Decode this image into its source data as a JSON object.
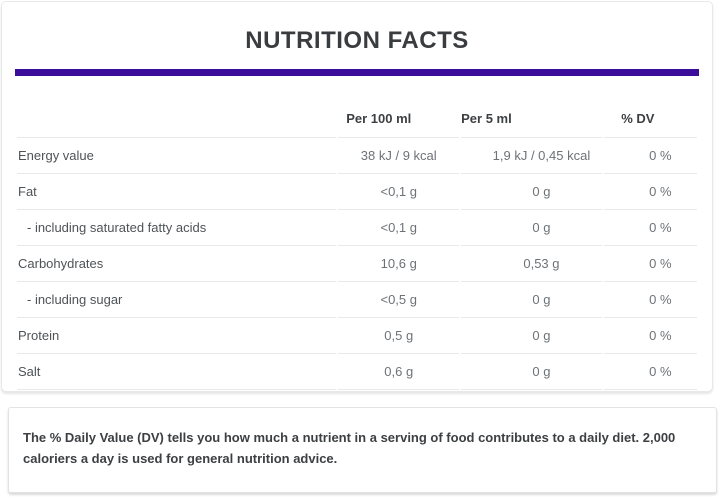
{
  "title": "NUTRITION FACTS",
  "theme": {
    "accent_bar_color": "#3a0d9b",
    "title_text_color": "#3a3d40",
    "separator_color": "#e9e9e9"
  },
  "table": {
    "columns": [
      "",
      "Per 100 ml",
      "Per 5 ml",
      "% DV"
    ],
    "rows": [
      {
        "name": "Energy value",
        "per_100ml": "38 kJ / 9 kcal",
        "per_5ml": "1,9 kJ / 0,45 kcal",
        "dv": "0 %",
        "indent": false
      },
      {
        "name": "Fat",
        "per_100ml": "<0,1 g",
        "per_5ml": "0 g",
        "dv": "0 %",
        "indent": false
      },
      {
        "name": "- including saturated fatty acids",
        "per_100ml": "<0,1 g",
        "per_5ml": "0 g",
        "dv": "0 %",
        "indent": true
      },
      {
        "name": "Carbohydrates",
        "per_100ml": "10,6 g",
        "per_5ml": "0,53 g",
        "dv": "0 %",
        "indent": false
      },
      {
        "name": "- including sugar",
        "per_100ml": "<0,5 g",
        "per_5ml": "0 g",
        "dv": "0 %",
        "indent": true
      },
      {
        "name": "Protein",
        "per_100ml": "0,5 g",
        "per_5ml": "0 g",
        "dv": "0 %",
        "indent": false
      },
      {
        "name": "Salt",
        "per_100ml": "0,6 g",
        "per_5ml": "0 g",
        "dv": "0 %",
        "indent": false
      }
    ]
  },
  "footnote": "The % Daily Value (DV) tells you how much a nutrient in a serving of food contributes to a daily diet. 2,000 caloriers a day is used for general nutrition advice."
}
